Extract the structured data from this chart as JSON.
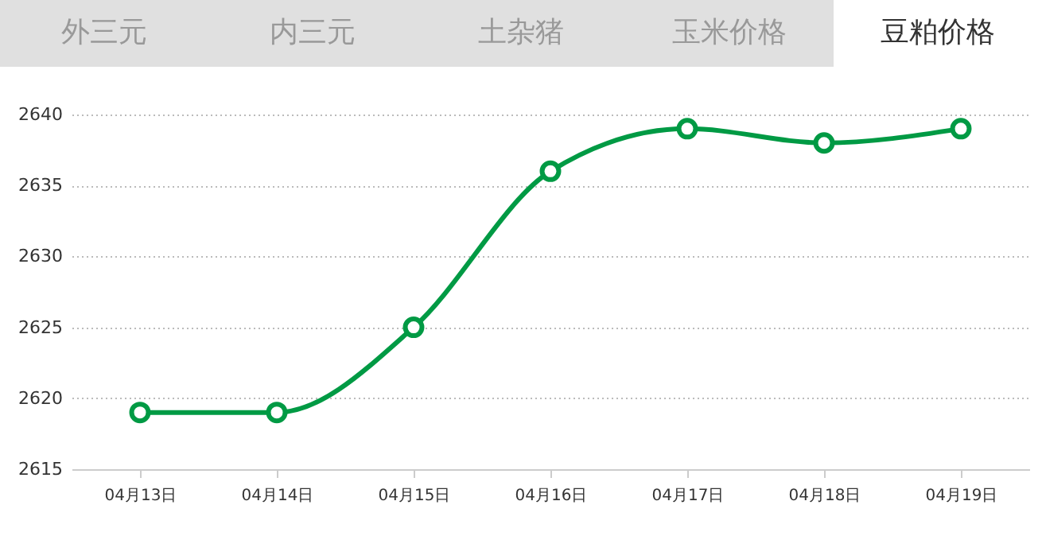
{
  "chart_data": {
    "type": "line",
    "title": "豆粕价格",
    "annotations": [
      "外三元",
      "内三元",
      "土杂猪",
      "玉米价格"
    ],
    "categories": [
      "04月13日",
      "04月14日",
      "04月15日",
      "04月16日",
      "04月17日",
      "04月18日",
      "04月19日"
    ],
    "series": [
      {
        "color": "#009a44",
        "values": [
          2619,
          2619,
          2625,
          2636,
          2639,
          2638,
          2639
        ]
      }
    ],
    "ylim": [
      2615,
      2640
    ],
    "yticks": [
      2615,
      2620,
      2625,
      2630,
      2635,
      2640
    ],
    "grid": "y",
    "marker": "circle",
    "line_style": "solid"
  }
}
